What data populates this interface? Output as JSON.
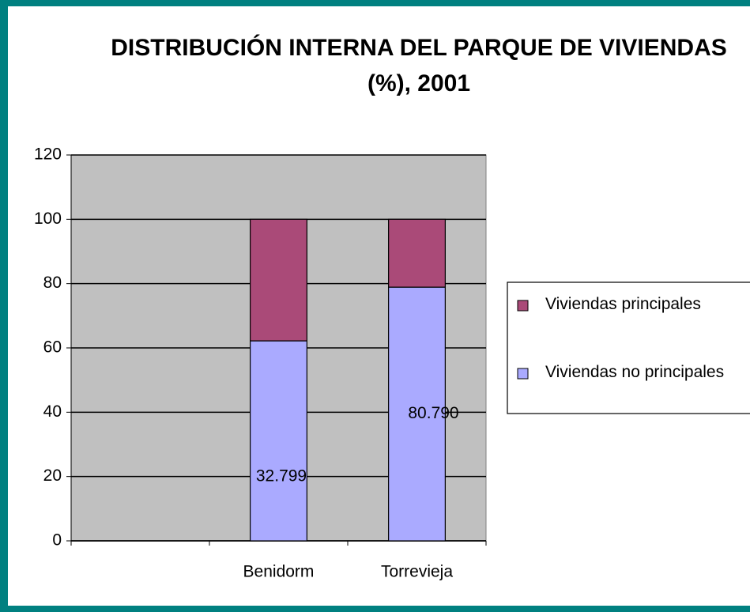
{
  "chart_data": {
    "type": "stacked_bar",
    "title": "DISTRIBUCIÓN INTERNA DEL PARQUE DE VIVIENDAS (%), 2001",
    "categories": [
      null,
      "Benidorm",
      "Torrevieja"
    ],
    "series": [
      {
        "name": "Viviendas no principales",
        "color": "#aaaaff",
        "values": [
          null,
          62.2,
          78.9
        ]
      },
      {
        "name": "Viviendas principales",
        "color": "#aa4a78",
        "values": [
          null,
          37.8,
          21.1
        ]
      }
    ],
    "annotations": [
      null,
      "32.799",
      "80.790"
    ],
    "ylim": [
      0,
      120
    ],
    "yticks": [
      0,
      20,
      40,
      60,
      80,
      100,
      120
    ],
    "grid": true,
    "legend": "right"
  }
}
